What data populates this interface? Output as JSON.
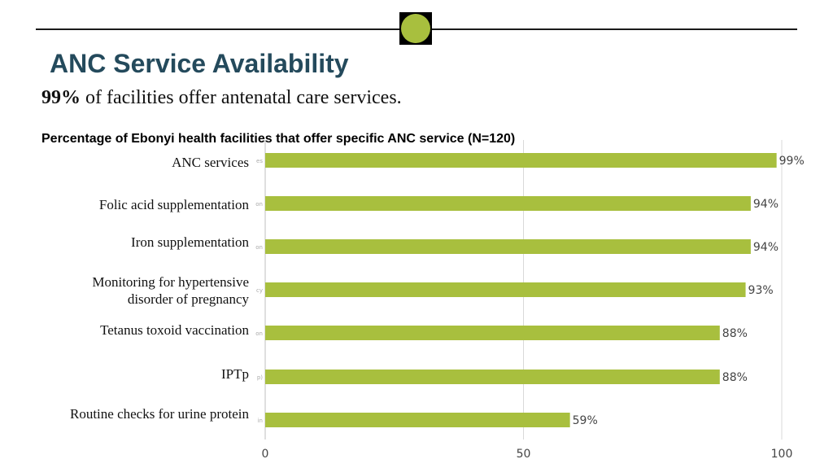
{
  "header": {
    "accent_color": "#a8bf3e"
  },
  "title": "ANC Service Availability",
  "subtitle": {
    "highlight": "99%",
    "text": " of facilities offer antenatal care services."
  },
  "chart_data": {
    "type": "bar",
    "orientation": "horizontal",
    "title": "Percentage of Ebonyi health facilities that offer specific ANC service (N=120)",
    "categories": [
      "ANC services",
      "Folic acid supplementation",
      "Iron supplementation",
      "Monitoring for hypertensive disorder of pregnancy",
      "Tetanus toxoid vaccination",
      "IPTp",
      "Routine checks for urine protein"
    ],
    "values": [
      99,
      94,
      94,
      93,
      88,
      88,
      59
    ],
    "value_labels": [
      "99%",
      "94%",
      "94%",
      "93%",
      "88%",
      "88%",
      "59%"
    ],
    "axis_stub_labels": [
      "es",
      "on",
      "on",
      "cy",
      "on",
      "p)",
      "in"
    ],
    "xlim": [
      0,
      100
    ],
    "xticks": [
      "0",
      "50",
      "100"
    ],
    "grid": true,
    "bar_color": "#a8bf3e"
  }
}
